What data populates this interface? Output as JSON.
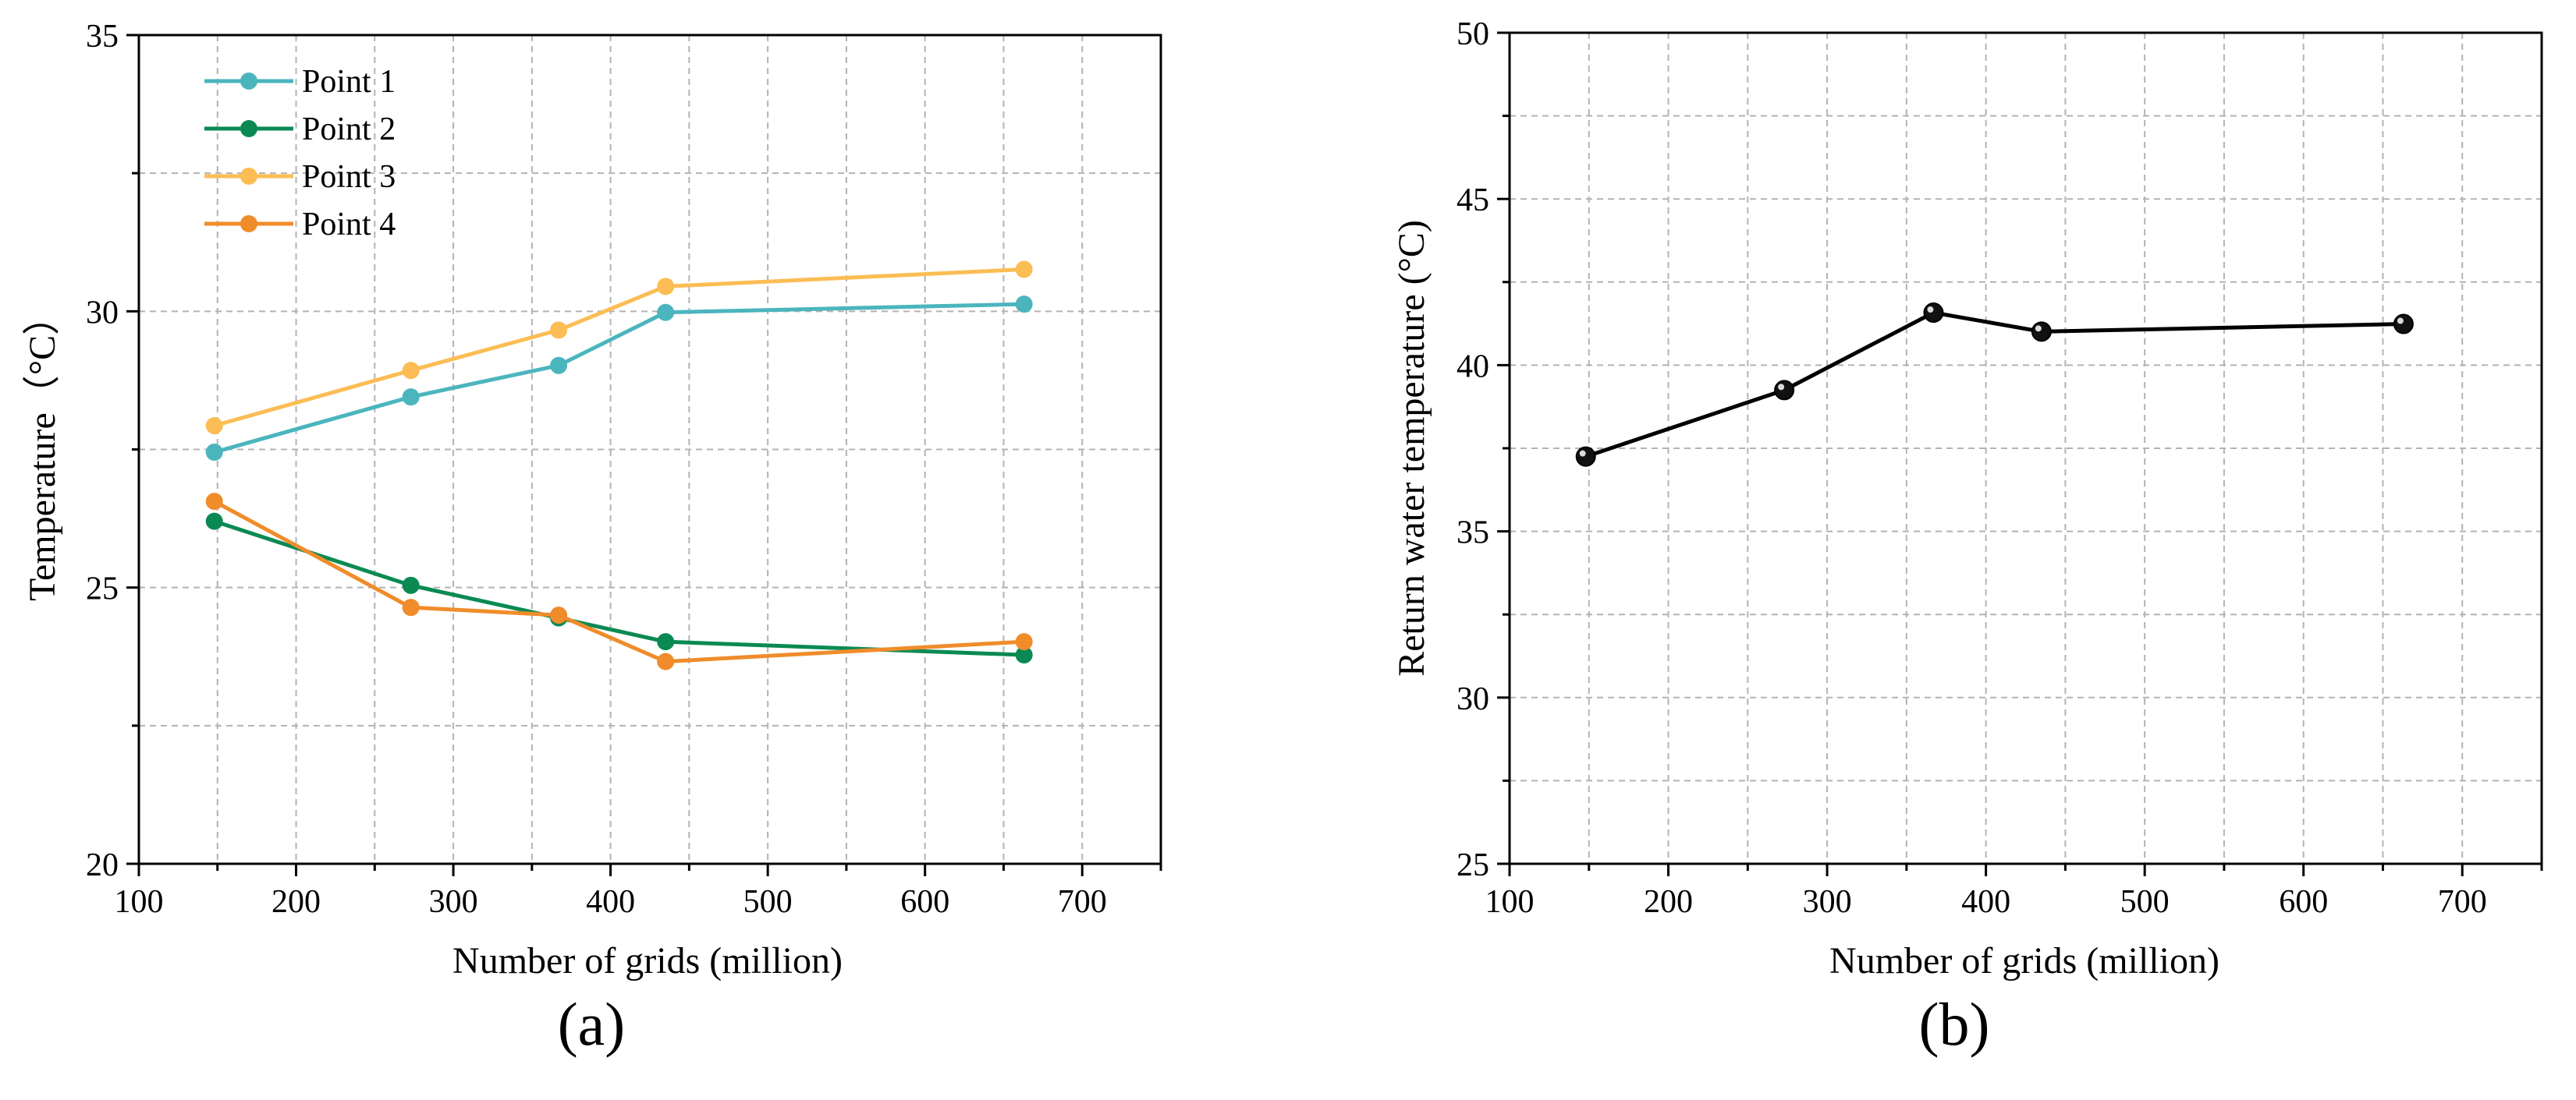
{
  "chart_data": [
    {
      "type": "line",
      "panel_label": "(a)",
      "title": "",
      "xlabel": "Number of grids (million)",
      "ylabel": "Temperature（°C）",
      "xlim": [
        100,
        750
      ],
      "ylim": [
        20,
        35
      ],
      "xticks": [
        100,
        200,
        300,
        400,
        500,
        600,
        700
      ],
      "yticks": [
        20,
        25,
        30,
        35
      ],
      "grid": true,
      "legend_position": "top-left",
      "x": [
        148,
        273,
        367,
        435,
        663
      ],
      "series": [
        {
          "name": "Point 1",
          "color": "#4bb5be",
          "values": [
            27.45,
            28.45,
            29.02,
            29.98,
            30.13
          ]
        },
        {
          "name": "Point 2",
          "color": "#0a8a52",
          "values": [
            26.2,
            25.04,
            24.45,
            24.02,
            23.78
          ]
        },
        {
          "name": "Point 3",
          "color": "#fbbd54",
          "values": [
            27.93,
            28.93,
            29.66,
            30.45,
            30.76
          ]
        },
        {
          "name": "Point 4",
          "color": "#f08c2a",
          "values": [
            26.56,
            24.64,
            24.5,
            23.66,
            24.02
          ]
        }
      ]
    },
    {
      "type": "line",
      "panel_label": "(b)",
      "title": "",
      "xlabel": "Number of grids (million)",
      "ylabel": "Return water temperature (°C)",
      "xlim": [
        100,
        750
      ],
      "ylim": [
        25,
        50
      ],
      "xticks": [
        100,
        200,
        300,
        400,
        500,
        600,
        700
      ],
      "yticks": [
        25,
        30,
        35,
        40,
        45,
        50
      ],
      "grid": true,
      "x": [
        148,
        273,
        367,
        435,
        663
      ],
      "series": [
        {
          "name": "Return water temperature",
          "color": "#000000",
          "values": [
            37.25,
            39.25,
            41.58,
            41.01,
            41.24
          ]
        }
      ]
    }
  ]
}
